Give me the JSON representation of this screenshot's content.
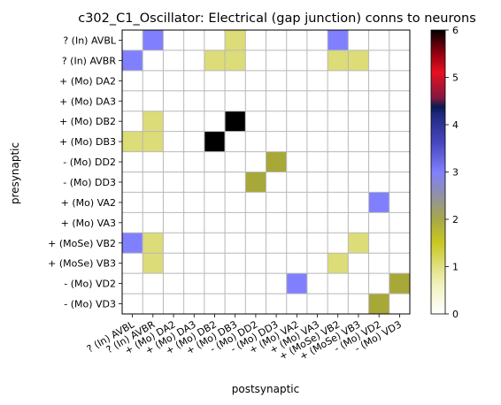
{
  "chart_data": {
    "type": "heatmap",
    "title": "c302_C1_Oscillator: Electrical (gap junction) conns to neurons",
    "xlabel": "postsynaptic",
    "ylabel": "presynaptic",
    "rows": [
      "? (In) AVBL",
      "? (In) AVBR",
      "+ (Mo) DA2",
      "+ (Mo) DA3",
      "+ (Mo) DB2",
      "+ (Mo) DB3",
      "- (Mo) DD2",
      "- (Mo) DD3",
      "+ (Mo) VA2",
      "+ (Mo) VA3",
      "+ (MoSe) VB2",
      "+ (MoSe) VB3",
      "- (Mo) VD2",
      "- (Mo) VD3"
    ],
    "columns": [
      "? (In) AVBL",
      "? (In) AVBR",
      "+ (Mo) DA2",
      "+ (Mo) DA3",
      "+ (Mo) DB2",
      "+ (Mo) DB3",
      "- (Mo) DD2",
      "- (Mo) DD3",
      "+ (Mo) VA2",
      "+ (Mo) VA3",
      "+ (MoSe) VB2",
      "+ (MoSe) VB3",
      "- (Mo) VD2",
      "- (Mo) VD3"
    ],
    "values": [
      [
        0,
        3,
        0,
        0,
        0,
        1,
        0,
        0,
        0,
        0,
        3,
        0,
        0,
        0
      ],
      [
        3,
        0,
        0,
        0,
        1,
        1,
        0,
        0,
        0,
        0,
        1,
        1,
        0,
        0
      ],
      [
        0,
        0,
        0,
        0,
        0,
        0,
        0,
        0,
        0,
        0,
        0,
        0,
        0,
        0
      ],
      [
        0,
        0,
        0,
        0,
        0,
        0,
        0,
        0,
        0,
        0,
        0,
        0,
        0,
        0
      ],
      [
        0,
        1,
        0,
        0,
        0,
        6,
        0,
        0,
        0,
        0,
        0,
        0,
        0,
        0
      ],
      [
        1,
        1,
        0,
        0,
        6,
        0,
        0,
        0,
        0,
        0,
        0,
        0,
        0,
        0
      ],
      [
        0,
        0,
        0,
        0,
        0,
        0,
        0,
        2,
        0,
        0,
        0,
        0,
        0,
        0
      ],
      [
        0,
        0,
        0,
        0,
        0,
        0,
        2,
        0,
        0,
        0,
        0,
        0,
        0,
        0
      ],
      [
        0,
        0,
        0,
        0,
        0,
        0,
        0,
        0,
        0,
        0,
        0,
        0,
        3,
        0
      ],
      [
        0,
        0,
        0,
        0,
        0,
        0,
        0,
        0,
        0,
        0,
        0,
        0,
        0,
        0
      ],
      [
        3,
        1,
        0,
        0,
        0,
        0,
        0,
        0,
        0,
        0,
        0,
        1,
        0,
        0
      ],
      [
        0,
        1,
        0,
        0,
        0,
        0,
        0,
        0,
        0,
        0,
        1,
        0,
        0,
        0
      ],
      [
        0,
        0,
        0,
        0,
        0,
        0,
        0,
        0,
        3,
        0,
        0,
        0,
        0,
        2
      ],
      [
        0,
        0,
        0,
        0,
        0,
        0,
        0,
        0,
        0,
        0,
        0,
        0,
        2,
        0
      ]
    ],
    "colorbar": {
      "min": 0,
      "max": 6,
      "ticks": [
        "0",
        "1",
        "2",
        "3",
        "4",
        "5",
        "6"
      ],
      "colormap": "gist_stern_r"
    },
    "grid": true
  }
}
